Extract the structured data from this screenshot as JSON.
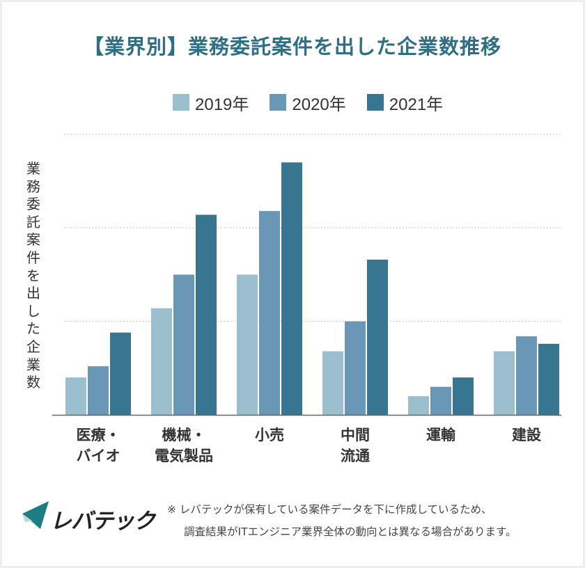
{
  "title": "【業界別】業務委託案件を出した企業数推移",
  "footnote": {
    "line1": "※ レバテックが保有している案件データを下に作成しているため、",
    "line2": "調査結果がITエンジニア業界全体の動向とは異なる場合があります。"
  },
  "logo": {
    "text": "レバテック",
    "icon": "levtech-logo-icon"
  },
  "colors": {
    "s2019": "#9cbfcf",
    "s2020": "#6997b5",
    "s2021": "#377591",
    "grid": "#bbbbbb",
    "axis": "#666666"
  },
  "chart_data": {
    "type": "bar",
    "title": "【業界別】業務委託案件を出した企業数推移",
    "xlabel": "",
    "ylabel": "業務委託案件を出した企業数",
    "categories": [
      "医療・\nバイオ",
      "機械・\n電気製品",
      "小売",
      "中間\n流通",
      "運輸",
      "建設"
    ],
    "series": [
      {
        "name": "2019年",
        "values": [
          20,
          57,
          75,
          34,
          10,
          34
        ]
      },
      {
        "name": "2020年",
        "values": [
          26,
          75,
          109,
          50,
          15,
          42
        ]
      },
      {
        "name": "2021年",
        "values": [
          44,
          107,
          135,
          83,
          20,
          38
        ]
      }
    ],
    "ylim": [
      0,
      150
    ],
    "grid": true,
    "legend_position": "top"
  }
}
